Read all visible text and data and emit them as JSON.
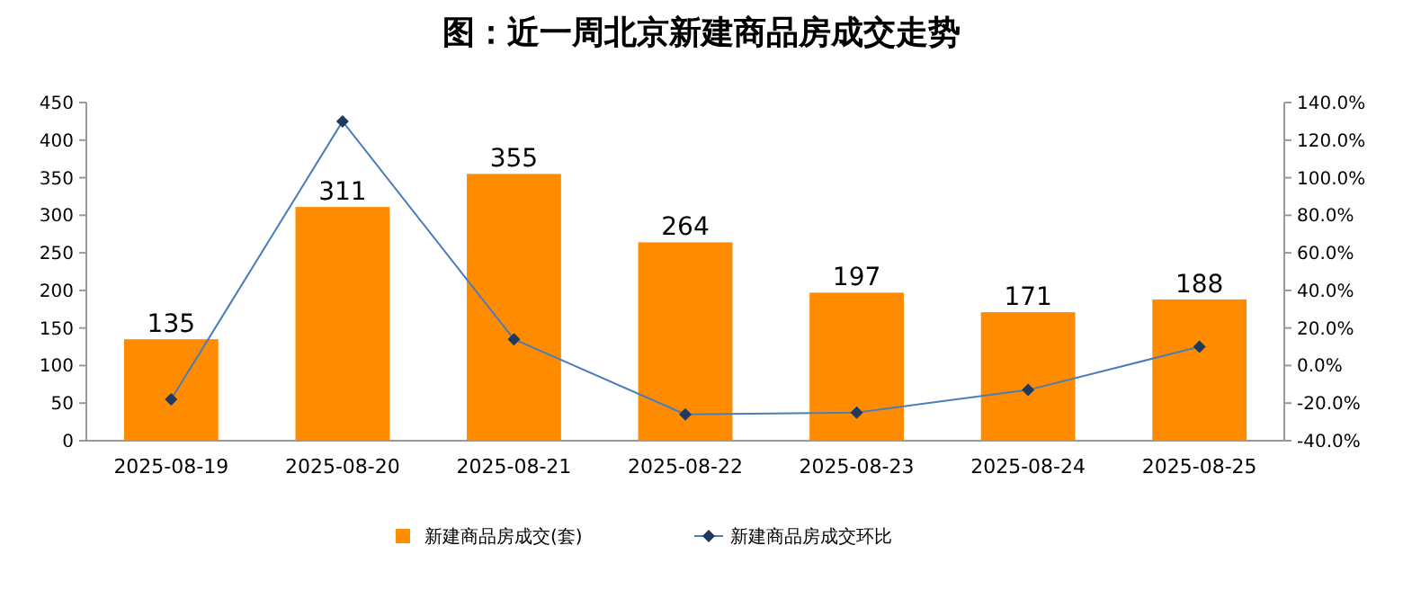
{
  "chart_data": {
    "type": "bar",
    "title": "图：近一周北京新建商品房成交走势",
    "categories": [
      "2025-08-19",
      "2025-08-20",
      "2025-08-21",
      "2025-08-22",
      "2025-08-23",
      "2025-08-24",
      "2025-08-25"
    ],
    "series": [
      {
        "name": "新建商品房成交(套)",
        "color": "#ff8c00",
        "values": [
          135,
          311,
          355,
          264,
          197,
          171,
          188
        ],
        "value_labels": [
          "135",
          "311",
          "355",
          "264",
          "197",
          "171",
          "188"
        ]
      },
      {
        "name": "新建商品房成交环比",
        "type": "line",
        "axis": "y2",
        "color": "#4a7ebb",
        "marker": "diamond",
        "values": [
          -18,
          130,
          14,
          -26,
          -25,
          -13,
          10
        ]
      }
    ],
    "ylim": [
      0,
      450
    ],
    "yticks": [
      0,
      50,
      100,
      150,
      200,
      250,
      300,
      350,
      400,
      450
    ],
    "y2lim": [
      -40,
      140
    ],
    "y2ticks": [
      {
        "value": -40,
        "label": "-40.0%"
      },
      {
        "value": -20,
        "label": "-20.0%"
      },
      {
        "value": 0,
        "label": "0.0%"
      },
      {
        "value": 20,
        "label": "20.0%"
      },
      {
        "value": 40,
        "label": "40.0%"
      },
      {
        "value": 60,
        "label": "60.0%"
      },
      {
        "value": 80,
        "label": "80.0%"
      },
      {
        "value": 100,
        "label": "100.0%"
      },
      {
        "value": 120,
        "label": "120.0%"
      },
      {
        "value": 140,
        "label": "140.0%"
      }
    ],
    "grid": false,
    "legend": "bottom"
  }
}
